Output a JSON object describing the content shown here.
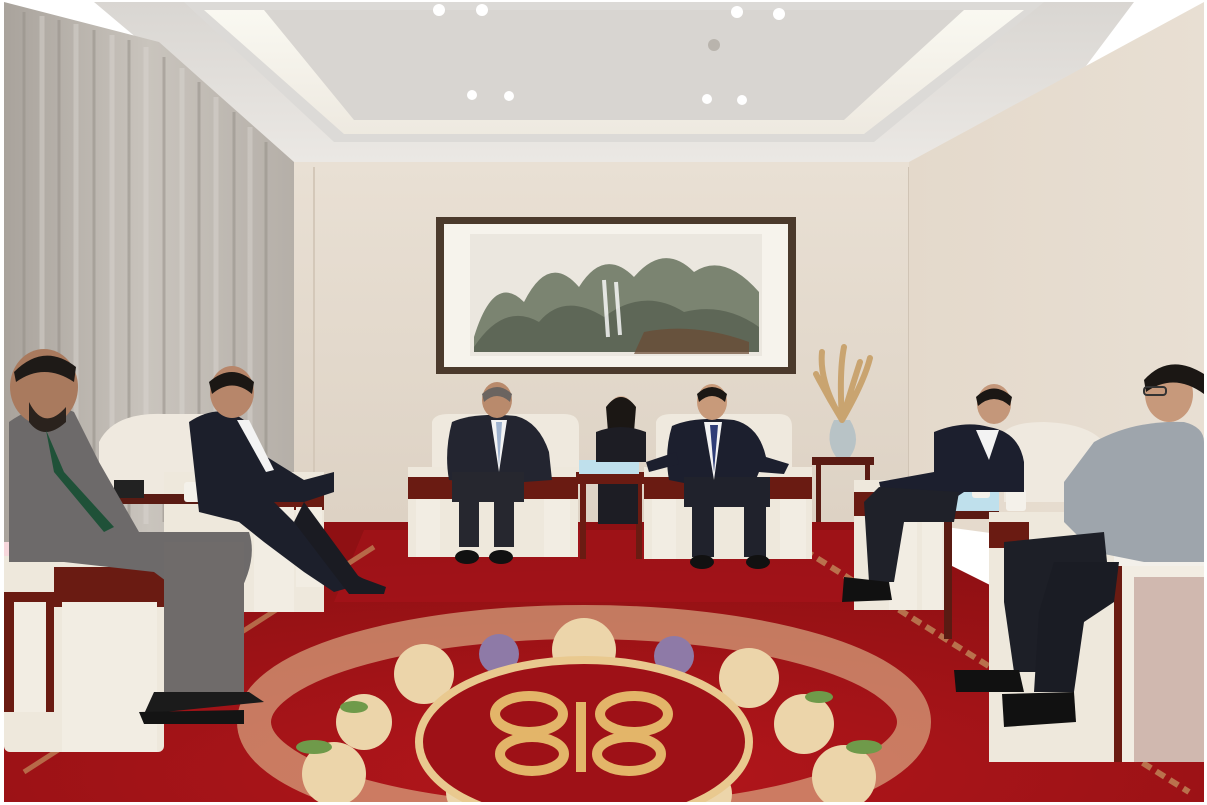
{
  "photo": {
    "subject": "",
    "palette": {
      "wall": "#e6dcd0",
      "ceiling": "#e9e6e2",
      "ceiling_light": "#fffdf2",
      "curtain": "#bdb7b0",
      "carpet_red": "#a41216",
      "carpet_dark": "#7e0d10",
      "sofa_white": "#eee9df",
      "sofa_wood": "#6a1b12",
      "suit_dark": "#1c1f2b",
      "suit_grey": "#6d6a6a",
      "floral_cream": "#ead3a8",
      "floral_purple": "#8e7aa7",
      "leaf_green": "#6f9a4a",
      "medallion_gold": "#e3b569"
    }
  }
}
